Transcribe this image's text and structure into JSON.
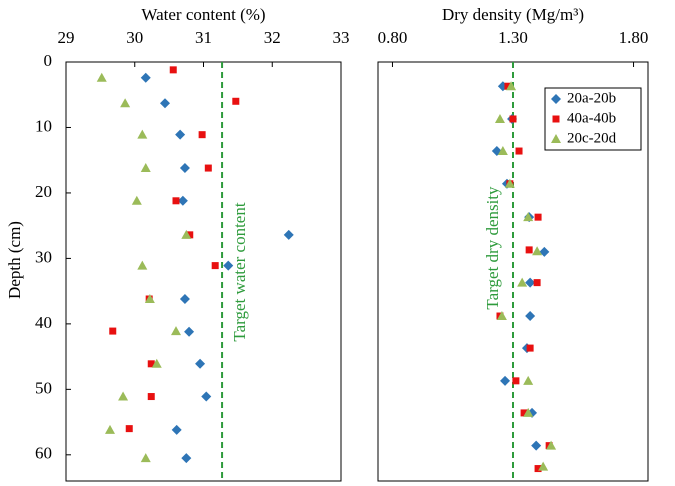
{
  "chart_data": [
    {
      "type": "scatter",
      "xlabel": "Water content (%)",
      "ylabel": "Depth (cm)",
      "xlim": [
        29,
        33
      ],
      "xticks": [
        29,
        30,
        31,
        32,
        33
      ],
      "ylim": [
        0,
        64
      ],
      "yticks": [
        0,
        10,
        20,
        30,
        40,
        50,
        60
      ],
      "reference_line": {
        "value": 31.27,
        "label": "Target water content",
        "color": "#2e9b3c"
      },
      "series": [
        {
          "color": "#2e75b6",
          "marker": "diamond",
          "x": [
            30.16,
            30.44,
            30.66,
            30.73,
            30.7,
            32.24,
            31.36,
            30.73,
            30.79,
            30.95,
            31.04,
            30.61,
            30.75
          ],
          "values": [
            2.4,
            6.3,
            11.1,
            16.2,
            21.2,
            26.4,
            31.1,
            36.2,
            41.2,
            46.1,
            51.1,
            56.2,
            60.5
          ]
        },
        {
          "color": "#e81010",
          "marker": "square",
          "x": [
            30.56,
            31.47,
            30.98,
            31.07,
            30.6,
            30.8,
            31.17,
            30.21,
            29.68,
            30.24,
            30.24,
            29.92
          ],
          "values": [
            1.2,
            6.0,
            11.1,
            16.2,
            21.2,
            26.4,
            31.1,
            36.2,
            41.1,
            46.1,
            51.1,
            56.0
          ]
        },
        {
          "color": "#9bbb59",
          "marker": "triangle",
          "x": [
            29.52,
            29.86,
            30.11,
            30.16,
            30.03,
            30.75,
            30.11,
            30.22,
            30.6,
            30.32,
            29.83,
            29.64,
            30.16
          ],
          "values": [
            2.4,
            6.3,
            11.1,
            16.2,
            21.2,
            26.4,
            31.1,
            36.2,
            41.1,
            46.1,
            51.1,
            56.2,
            60.5
          ]
        }
      ]
    },
    {
      "type": "scatter",
      "xlabel": "Dry density (Mg/m³)",
      "xlim": [
        0.74,
        1.86
      ],
      "xticks": [
        {
          "value": 0.8,
          "label": "0.80"
        },
        {
          "value": 1.3,
          "label": "1.30"
        },
        {
          "value": 1.8,
          "label": "1.80"
        }
      ],
      "ylim": [
        0,
        64
      ],
      "reference_line": {
        "value": 1.3,
        "label": "Target dry density",
        "color": "#2e9b3c"
      },
      "legend": "top-right",
      "series": [
        {
          "name": "20a-20b",
          "color": "#2e75b6",
          "marker": "diamond",
          "x": [
            1.258,
            1.296,
            1.233,
            1.275,
            1.367,
            1.43,
            1.371,
            1.371,
            1.358,
            1.267,
            1.379,
            1.396
          ],
          "values": [
            3.7,
            8.7,
            13.6,
            18.6,
            23.7,
            29.0,
            33.7,
            38.8,
            43.7,
            48.7,
            53.6,
            58.6
          ]
        },
        {
          "name": "40a-40b",
          "color": "#e81010",
          "marker": "square",
          "x": [
            1.279,
            1.3,
            1.325,
            1.287,
            1.404,
            1.367,
            1.4,
            1.246,
            1.371,
            1.312,
            1.346,
            1.45,
            1.404
          ],
          "values": [
            3.7,
            8.7,
            13.6,
            18.6,
            23.7,
            28.7,
            33.7,
            38.8,
            43.7,
            48.7,
            53.6,
            58.6,
            62.1
          ]
        },
        {
          "name": "20c-20d",
          "color": "#9bbb59",
          "marker": "triangle",
          "x": [
            1.292,
            1.246,
            1.258,
            1.287,
            1.363,
            1.4,
            1.338,
            1.254,
            1.363,
            1.363,
            1.458,
            1.425
          ],
          "values": [
            3.7,
            8.7,
            13.6,
            18.6,
            23.7,
            28.9,
            33.7,
            38.8,
            48.7,
            53.6,
            58.6,
            61.8
          ]
        }
      ]
    }
  ]
}
